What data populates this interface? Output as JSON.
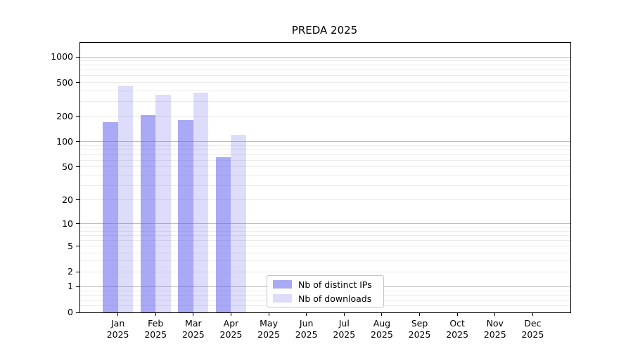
{
  "chart_data": {
    "type": "bar",
    "title": "PREDA 2025",
    "categories": [
      "Jan",
      "Feb",
      "Mar",
      "Apr",
      "May",
      "Jun",
      "Jul",
      "Aug",
      "Sep",
      "Oct",
      "Nov",
      "Dec"
    ],
    "x_year_label": "2025",
    "series": [
      {
        "name": "Nb of distinct IPs",
        "fill": "rgba(99,99,236,0.55)",
        "legend_color": "#a9a9f5",
        "values": [
          170,
          205,
          180,
          65,
          0,
          0,
          0,
          0,
          0,
          0,
          0,
          0
        ]
      },
      {
        "name": "Nb of downloads",
        "fill": "rgba(99,99,236,0.22)",
        "legend_color": "#dcdcfb",
        "values": [
          460,
          360,
          380,
          122,
          0,
          0,
          0,
          0,
          0,
          0,
          0,
          0
        ]
      }
    ],
    "yscale": "log1p",
    "ylim": [
      0,
      1464
    ],
    "yticks": [
      0,
      1,
      2,
      5,
      10,
      20,
      50,
      100,
      200,
      500,
      1000
    ],
    "major_gridline_values": [
      1,
      10,
      100,
      1000
    ],
    "grid": true,
    "legend": {
      "visible": true,
      "location": "inside-bottom-center"
    },
    "colors": {
      "major_grid": "#bdbdbd",
      "minor_grid": "#ebebeb",
      "spine": "#000000",
      "text": "#000000"
    }
  }
}
